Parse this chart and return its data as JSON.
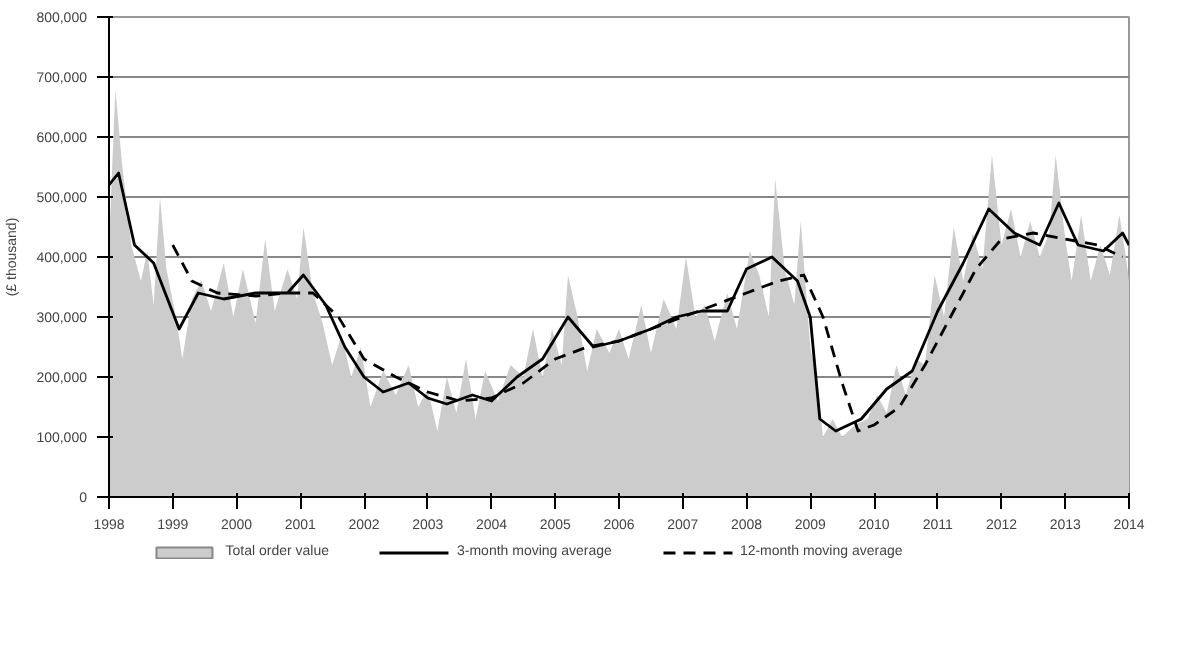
{
  "chart_data": {
    "type": "line",
    "ylabel": "(£ thousand)",
    "xlim": [
      1998,
      2014
    ],
    "xticks": [
      1998,
      1999,
      2000,
      2001,
      2002,
      2003,
      2004,
      2005,
      2006,
      2007,
      2008,
      2009,
      2010,
      2011,
      2012,
      2013,
      2014
    ],
    "ylim": [
      0,
      800000
    ],
    "yticks": [
      0,
      {
        "value": 100000,
        "label": "100,000"
      },
      {
        "value": 200000,
        "label": "200,000"
      },
      {
        "value": 300000,
        "label": "300,000"
      },
      {
        "value": 400000,
        "label": "400,000"
      },
      {
        "value": 500000,
        "label": "500,000"
      },
      {
        "value": 600000,
        "label": "600,000"
      },
      {
        "value": 700000,
        "label": "700,000"
      },
      {
        "value": 800000,
        "label": "800,000"
      }
    ],
    "grid": "y",
    "legend": "bottom",
    "series": [
      {
        "name": "Total order value",
        "type": "area",
        "color": "#cccccc",
        "x": [
          1998.0,
          1998.1,
          1998.2,
          1998.35,
          1998.5,
          1998.6,
          1998.7,
          1998.8,
          1998.9,
          1999.05,
          1999.15,
          1999.3,
          1999.45,
          1999.6,
          1999.8,
          1999.95,
          2000.1,
          2000.3,
          2000.45,
          2000.6,
          2000.8,
          2000.95,
          2001.05,
          2001.2,
          2001.35,
          2001.5,
          2001.65,
          2001.8,
          2001.95,
          2002.1,
          2002.3,
          2002.5,
          2002.7,
          2002.85,
          2003.0,
          2003.15,
          2003.3,
          2003.45,
          2003.6,
          2003.75,
          2003.9,
          2004.1,
          2004.3,
          2004.5,
          2004.65,
          2004.8,
          2004.95,
          2005.1,
          2005.2,
          2005.35,
          2005.5,
          2005.65,
          2005.85,
          2006.0,
          2006.15,
          2006.35,
          2006.5,
          2006.7,
          2006.9,
          2007.05,
          2007.2,
          2007.35,
          2007.5,
          2007.7,
          2007.85,
          2008.05,
          2008.2,
          2008.35,
          2008.45,
          2008.6,
          2008.75,
          2008.85,
          2009.0,
          2009.1,
          2009.2,
          2009.35,
          2009.5,
          2009.7,
          2009.9,
          2010.05,
          2010.2,
          2010.35,
          2010.5,
          2010.65,
          2010.8,
          2010.95,
          2011.1,
          2011.25,
          2011.4,
          2011.55,
          2011.7,
          2011.85,
          2012.0,
          2012.15,
          2012.3,
          2012.45,
          2012.6,
          2012.75,
          2012.85,
          2013.0,
          2013.1,
          2013.25,
          2013.4,
          2013.55,
          2013.7,
          2013.85,
          2013.95,
          2014.0
        ],
        "values": [
          420000,
          680000,
          560000,
          420000,
          360000,
          410000,
          320000,
          500000,
          380000,
          300000,
          230000,
          330000,
          360000,
          310000,
          390000,
          300000,
          380000,
          290000,
          430000,
          310000,
          380000,
          330000,
          450000,
          340000,
          290000,
          220000,
          270000,
          200000,
          250000,
          150000,
          210000,
          170000,
          220000,
          150000,
          180000,
          110000,
          200000,
          140000,
          230000,
          130000,
          210000,
          160000,
          220000,
          200000,
          280000,
          200000,
          280000,
          220000,
          370000,
          300000,
          210000,
          280000,
          240000,
          280000,
          230000,
          320000,
          240000,
          330000,
          280000,
          400000,
          300000,
          320000,
          260000,
          340000,
          280000,
          410000,
          370000,
          300000,
          530000,
          380000,
          320000,
          460000,
          250000,
          200000,
          100000,
          130000,
          100000,
          120000,
          130000,
          170000,
          140000,
          220000,
          170000,
          230000,
          220000,
          370000,
          300000,
          450000,
          360000,
          440000,
          380000,
          570000,
          420000,
          480000,
          400000,
          460000,
          400000,
          440000,
          570000,
          430000,
          360000,
          470000,
          360000,
          420000,
          370000,
          470000,
          400000,
          360000
        ]
      },
      {
        "name": "3-month moving average",
        "color": "#000000",
        "line_style": "solid",
        "x": [
          1998.0,
          1998.15,
          1998.4,
          1998.7,
          1999.1,
          1999.4,
          1999.8,
          2000.3,
          2000.8,
          2001.05,
          2001.4,
          2001.7,
          2002.0,
          2002.3,
          2002.7,
          2003.0,
          2003.3,
          2003.7,
          2004.0,
          2004.4,
          2004.8,
          2005.2,
          2005.6,
          2006.0,
          2006.5,
          2006.9,
          2007.3,
          2007.7,
          2008.0,
          2008.4,
          2008.8,
          2009.0,
          2009.15,
          2009.4,
          2009.8,
          2010.2,
          2010.6,
          2011.0,
          2011.4,
          2011.8,
          2012.2,
          2012.6,
          2012.9,
          2013.2,
          2013.6,
          2013.9,
          2014.0
        ],
        "values": [
          520000,
          540000,
          420000,
          390000,
          280000,
          340000,
          330000,
          340000,
          340000,
          370000,
          320000,
          250000,
          200000,
          175000,
          190000,
          165000,
          155000,
          170000,
          160000,
          200000,
          230000,
          300000,
          250000,
          260000,
          280000,
          300000,
          310000,
          310000,
          380000,
          400000,
          360000,
          300000,
          130000,
          110000,
          130000,
          180000,
          210000,
          310000,
          390000,
          480000,
          440000,
          420000,
          490000,
          420000,
          410000,
          440000,
          420000
        ]
      },
      {
        "name": "12-month moving average",
        "color": "#000000",
        "line_style": "dashed",
        "x": [
          1999.0,
          1999.3,
          1999.7,
          2000.3,
          2000.8,
          2001.2,
          2001.6,
          2002.0,
          2002.5,
          2003.0,
          2003.5,
          2004.0,
          2004.5,
          2005.0,
          2005.5,
          2006.0,
          2006.5,
          2007.0,
          2007.5,
          2008.0,
          2008.5,
          2008.9,
          2009.2,
          2009.5,
          2009.75,
          2010.0,
          2010.4,
          2010.8,
          2011.2,
          2011.6,
          2012.0,
          2012.5,
          2013.0,
          2013.5,
          2013.9
        ],
        "values": [
          420000,
          360000,
          340000,
          335000,
          340000,
          340000,
          300000,
          230000,
          200000,
          175000,
          160000,
          165000,
          190000,
          230000,
          250000,
          260000,
          280000,
          300000,
          320000,
          340000,
          360000,
          370000,
          300000,
          190000,
          110000,
          120000,
          150000,
          220000,
          300000,
          380000,
          430000,
          440000,
          430000,
          420000,
          400000
        ]
      }
    ]
  }
}
